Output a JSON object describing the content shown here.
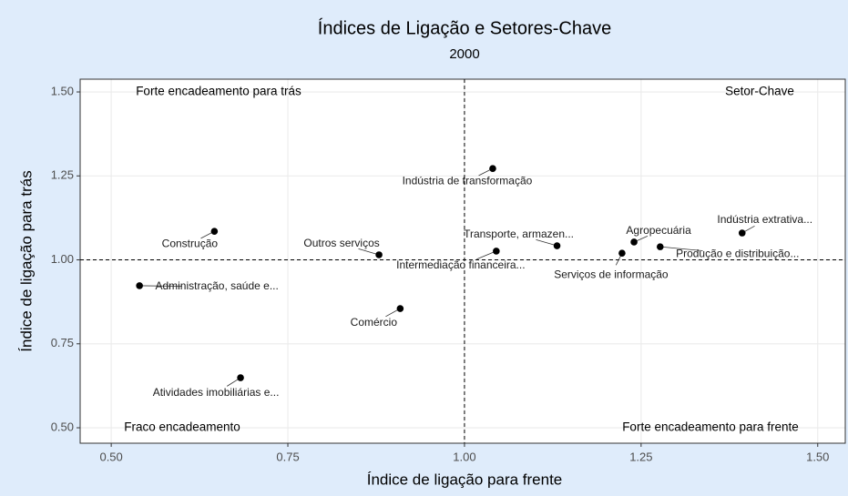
{
  "chart_data": {
    "type": "scatter",
    "title": "Índices de Ligação e Setores-Chave",
    "subtitle": "2000",
    "xlabel": "Índice de ligação para frente",
    "ylabel": "Índice de ligação para trás",
    "point_labels": [
      "Indústria de transformação",
      "Construção",
      "Outros serviços",
      "Intermediação financeira...",
      "Transporte, armazen...",
      "Serviços de informação",
      "Agropecuária",
      "Produção e distribuição...",
      "Indústria extrativa...",
      "Administração, saúde e...",
      "Comércio",
      "Atividades imobiliárias e..."
    ],
    "x": [
      1.04,
      0.646,
      0.879,
      1.045,
      1.131,
      1.223,
      1.24,
      1.277,
      1.393,
      0.54,
      0.909,
      0.683
    ],
    "values": [
      1.272,
      1.085,
      1.015,
      1.026,
      1.042,
      1.02,
      1.053,
      1.039,
      1.08,
      0.923,
      0.855,
      0.649
    ],
    "color": "#000000",
    "annotations": [
      "Forte encadeamento para trás",
      "Setor-Chave",
      "Fraco encadeamento",
      "Forte encadeamento para frente"
    ],
    "vline": 1,
    "hline": 1,
    "xlim": [
      0.456,
      1.539
    ],
    "ylim": [
      0.454,
      1.538
    ],
    "xticks": [
      {
        "value": 0.5,
        "label": "0.50"
      },
      {
        "value": 0.75,
        "label": "0.75"
      },
      {
        "value": 1,
        "label": "1.00"
      },
      {
        "value": 1.25,
        "label": "1.25"
      },
      {
        "value": 1.5,
        "label": "1.50"
      }
    ],
    "yticks": [
      {
        "value": 0.5,
        "label": "0.50"
      },
      {
        "value": 0.75,
        "label": "0.75"
      },
      {
        "value": 1,
        "label": "1.00"
      },
      {
        "value": 1.25,
        "label": "1.25"
      },
      {
        "value": 1.5,
        "label": "1.50"
      }
    ],
    "grid": true
  }
}
